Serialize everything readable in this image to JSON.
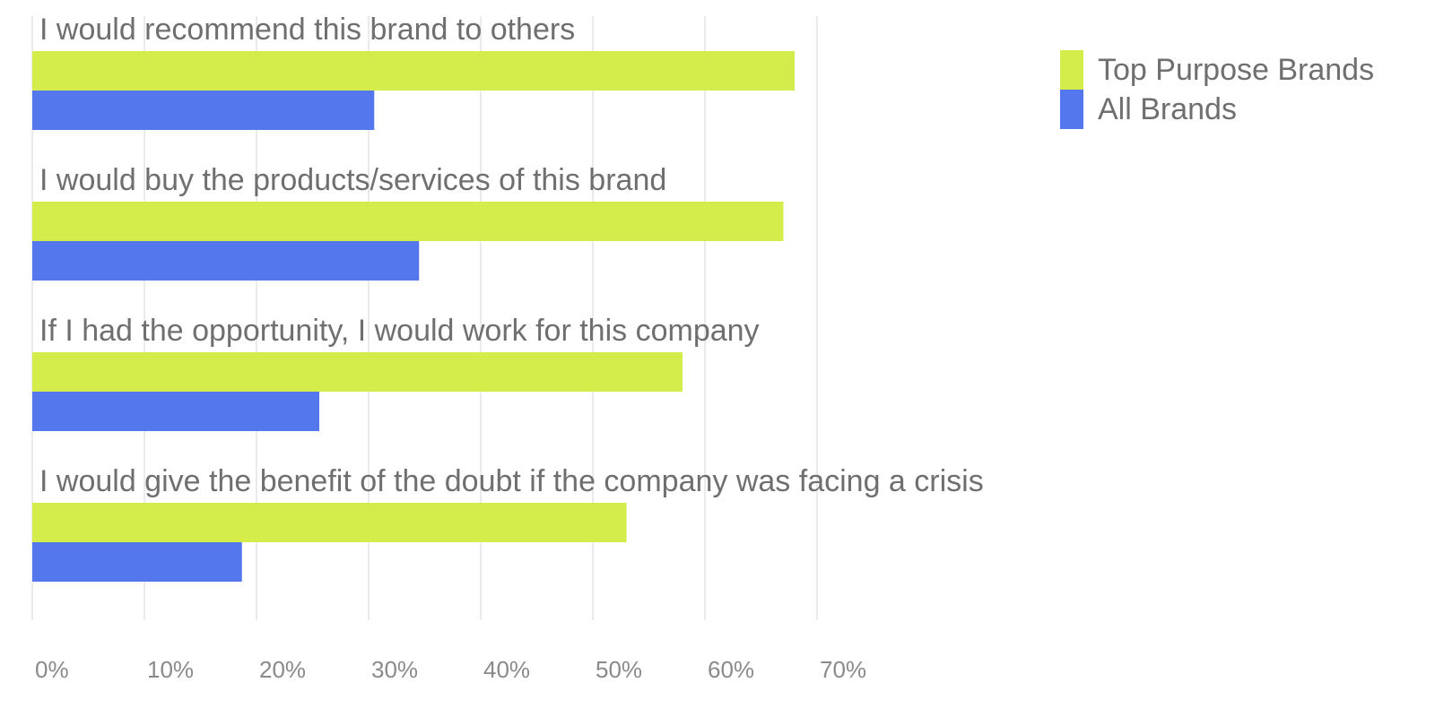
{
  "chart_data": {
    "type": "bar",
    "orientation": "horizontal",
    "categories": [
      "I would recommend this brand to others",
      "I would buy the products/services of this brand",
      "If I had the opportunity, I would work for this company",
      "I would give the benefit of the doubt if the company was facing a crisis"
    ],
    "series": [
      {
        "name": "Top Purpose Brands",
        "color": "#d4ed4a",
        "values": [
          68,
          67,
          58,
          53
        ]
      },
      {
        "name": "All Brands",
        "color": "#5577ee",
        "values": [
          30.5,
          34.5,
          25.6,
          18.7
        ]
      }
    ],
    "xlim": [
      0,
      70
    ],
    "xticks": [
      "0%",
      "10%",
      "20%",
      "30%",
      "40%",
      "50%",
      "60%",
      "70%"
    ],
    "grid": true,
    "legend_position": "top-right"
  }
}
